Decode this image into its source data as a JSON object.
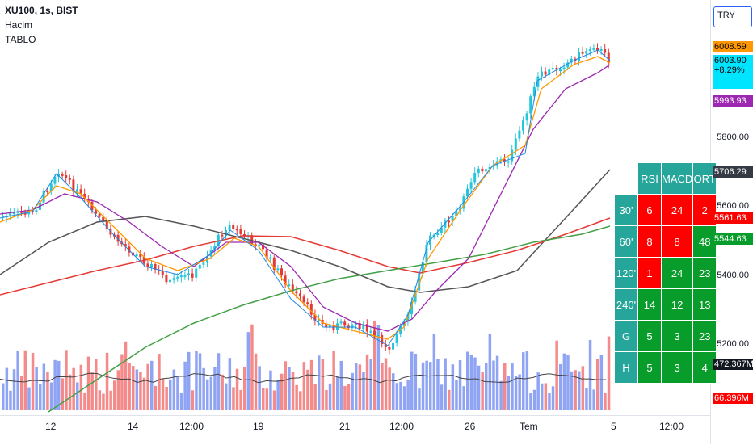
{
  "legend": {
    "symbol": "XU100, 1s, BIST",
    "volume": "Hacim",
    "table": "TABLO"
  },
  "currency": "TRY",
  "price_axis": {
    "ticks": [
      "5800.00",
      "5600.00",
      "5400.00",
      "5200.00"
    ],
    "tags": [
      {
        "text": "6008.59",
        "color": "#ff9800"
      },
      {
        "text": "6003.90\n+8.29%",
        "color": "#00e5ff"
      },
      {
        "text": "5993.93",
        "color": "#9c27b0"
      },
      {
        "text": "5706.29",
        "color": "#363a45"
      },
      {
        "text": "5561.63",
        "color": "#ff0000"
      },
      {
        "text": "5544.63",
        "color": "#089c2a"
      },
      {
        "text": "472.367M",
        "color": "#131722"
      },
      {
        "text": "66.396M",
        "color": "#ff0000"
      }
    ]
  },
  "time_axis": [
    "12",
    "14",
    "12:00",
    "19",
    "21",
    "12:00",
    "26",
    "Tem",
    "5",
    "12:00"
  ],
  "table": {
    "headers": [
      "RSİ",
      "MACD",
      "ORT"
    ],
    "rows": [
      {
        "label": "30'",
        "values": [
          "6",
          "24",
          "2"
        ],
        "colors": [
          "red",
          "red",
          "red"
        ]
      },
      {
        "label": "60'",
        "values": [
          "8",
          "8",
          "48"
        ],
        "colors": [
          "red",
          "red",
          "green"
        ]
      },
      {
        "label": "120'",
        "values": [
          "1",
          "24",
          "23"
        ],
        "colors": [
          "red",
          "green",
          "green"
        ]
      },
      {
        "label": "240'",
        "values": [
          "14",
          "12",
          "13"
        ],
        "colors": [
          "green",
          "green",
          "green"
        ]
      },
      {
        "label": "G",
        "values": [
          "5",
          "3",
          "23"
        ],
        "colors": [
          "green",
          "green",
          "green"
        ]
      },
      {
        "label": "H",
        "values": [
          "5",
          "3",
          "4"
        ],
        "colors": [
          "green",
          "green",
          "green"
        ]
      }
    ]
  },
  "colors": {
    "up": "#26c6da",
    "down": "#e53935",
    "vol_up": "#90a4f4",
    "vol_down": "#f48a8a"
  }
}
